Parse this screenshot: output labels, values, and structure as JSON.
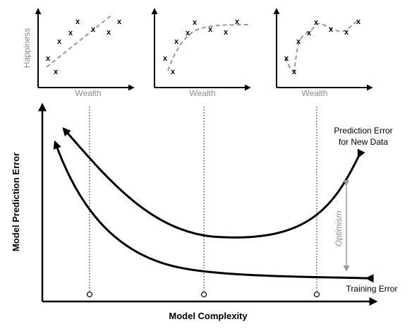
{
  "mini_plots": [
    {
      "ylabel": "Happiness",
      "xlabel": "Wealth",
      "marker": "x"
    },
    {
      "xlabel": "Wealth",
      "marker": "x"
    },
    {
      "xlabel": "Wealth",
      "marker": "x"
    }
  ],
  "main": {
    "ylabel": "Model Prediction Error",
    "xlabel": "Model Complexity",
    "test_curve_label_line1": "Prediction Error",
    "test_curve_label_line2": "for New Data",
    "train_curve_label": "Training Error",
    "gap_label": "Optimism"
  },
  "colors": {
    "axis": "#000000",
    "fit_line": "#999999",
    "muted_text": "#8c8c8c",
    "gap_arrow": "#9a9a9a"
  }
}
